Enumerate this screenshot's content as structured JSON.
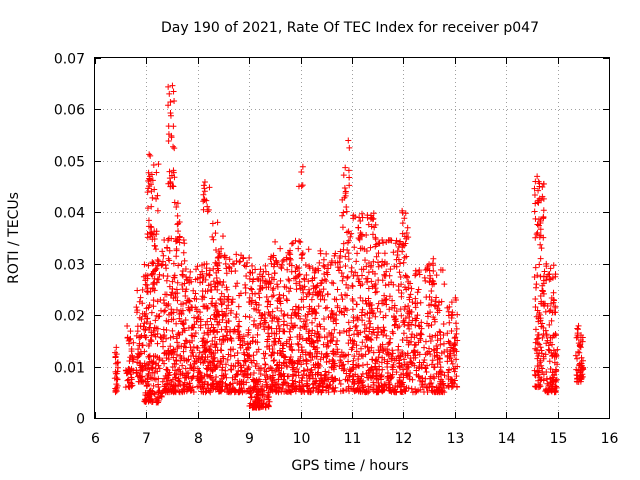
{
  "chart_data": {
    "type": "scatter",
    "title": "Day 190 of 2021, Rate Of TEC Index for receiver p047",
    "xlabel": "GPS time / hours",
    "ylabel": "ROTI / TECUs",
    "xlim": [
      6,
      16
    ],
    "ylim": [
      0,
      0.07
    ],
    "xticks": [
      "6",
      "7",
      "8",
      "9",
      "10",
      "11",
      "12",
      "13",
      "14",
      "15",
      "16"
    ],
    "yticks": [
      "0",
      "0.01",
      "0.02",
      "0.03",
      "0.04",
      "0.05",
      "0.06",
      "0.07"
    ],
    "grid": true,
    "marker": "+",
    "color": "#ff0000",
    "series": [
      {
        "name": "ROTI",
        "clusters": [
          {
            "x_range": [
              6.38,
              6.45
            ],
            "y_range": [
              0.005,
              0.014
            ],
            "count": 25
          },
          {
            "x_range": [
              6.6,
              6.75
            ],
            "y_range": [
              0.006,
              0.018
            ],
            "count": 45
          },
          {
            "x_range": [
              6.8,
              6.95
            ],
            "y_range": [
              0.007,
              0.025
            ],
            "count": 60
          },
          {
            "x_range": [
              6.95,
              7.3
            ],
            "y_range": [
              0.003,
              0.03
            ],
            "count": 180
          },
          {
            "x_range": [
              7.0,
              7.1
            ],
            "y_range": [
              0.035,
              0.052
            ],
            "count": 25
          },
          {
            "x_range": [
              7.1,
              7.25
            ],
            "y_range": [
              0.03,
              0.05
            ],
            "count": 25
          },
          {
            "x_range": [
              7.3,
              7.75
            ],
            "y_range": [
              0.005,
              0.035
            ],
            "count": 230
          },
          {
            "x_range": [
              7.42,
              7.55
            ],
            "y_range": [
              0.045,
              0.065
            ],
            "count": 30
          },
          {
            "x_range": [
              7.55,
              7.65
            ],
            "y_range": [
              0.034,
              0.042
            ],
            "count": 12
          },
          {
            "x_range": [
              7.75,
              8.3
            ],
            "y_range": [
              0.005,
              0.03
            ],
            "count": 250
          },
          {
            "x_range": [
              8.1,
              8.25
            ],
            "y_range": [
              0.04,
              0.046
            ],
            "count": 15
          },
          {
            "x_range": [
              8.25,
              8.5
            ],
            "y_range": [
              0.02,
              0.04
            ],
            "count": 30
          },
          {
            "x_range": [
              8.3,
              9.0
            ],
            "y_range": [
              0.005,
              0.032
            ],
            "count": 300
          },
          {
            "x_range": [
              9.0,
              9.4
            ],
            "y_range": [
              0.002,
              0.03
            ],
            "count": 200
          },
          {
            "x_range": [
              9.1,
              9.35
            ],
            "y_range": [
              0.002,
              0.008
            ],
            "count": 25
          },
          {
            "x_range": [
              9.4,
              10.0
            ],
            "y_range": [
              0.005,
              0.035
            ],
            "count": 300
          },
          {
            "x_range": [
              9.95,
              10.05
            ],
            "y_range": [
              0.045,
              0.05
            ],
            "count": 5
          },
          {
            "x_range": [
              10.0,
              10.8
            ],
            "y_range": [
              0.005,
              0.033
            ],
            "count": 350
          },
          {
            "x_range": [
              10.8,
              10.95
            ],
            "y_range": [
              0.04,
              0.054
            ],
            "count": 15
          },
          {
            "x_range": [
              10.8,
              11.5
            ],
            "y_range": [
              0.005,
              0.04
            ],
            "count": 320
          },
          {
            "x_range": [
              11.5,
              12.1
            ],
            "y_range": [
              0.005,
              0.035
            ],
            "count": 280
          },
          {
            "x_range": [
              11.95,
              12.1
            ],
            "y_range": [
              0.035,
              0.041
            ],
            "count": 10
          },
          {
            "x_range": [
              12.1,
              12.8
            ],
            "y_range": [
              0.005,
              0.03
            ],
            "count": 240
          },
          {
            "x_range": [
              12.5,
              12.6
            ],
            "y_range": [
              0.026,
              0.031
            ],
            "count": 8
          },
          {
            "x_range": [
              12.85,
              13.05
            ],
            "y_range": [
              0.006,
              0.024
            ],
            "count": 70
          },
          {
            "x_range": [
              14.55,
              14.75
            ],
            "y_range": [
              0.006,
              0.047
            ],
            "count": 130
          },
          {
            "x_range": [
              14.75,
              15.0
            ],
            "y_range": [
              0.005,
              0.03
            ],
            "count": 110
          },
          {
            "x_range": [
              15.35,
              15.5
            ],
            "y_range": [
              0.007,
              0.018
            ],
            "count": 60
          }
        ]
      }
    ]
  }
}
